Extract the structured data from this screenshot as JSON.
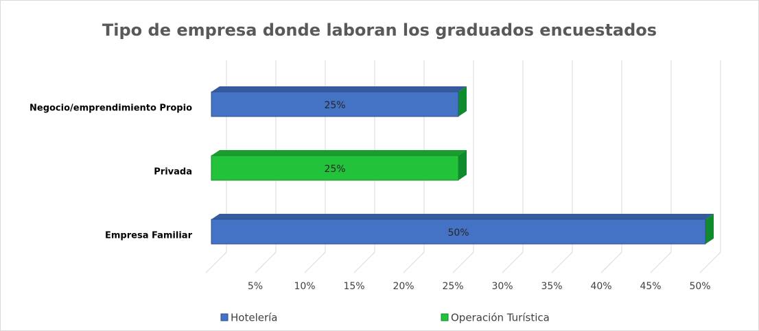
{
  "chart_data": {
    "type": "bar3d",
    "orientation": "horizontal",
    "title": "Tipo de empresa donde laboran los graduados encuestados",
    "categories": [
      "Negocio/emprendimiento Propio",
      "Privada",
      "Empresa Familiar"
    ],
    "series": [
      {
        "name": "Hotelería",
        "color": "#4472c4",
        "values": [
          25,
          null,
          50
        ],
        "value_labels": [
          "25%",
          null,
          "50%"
        ]
      },
      {
        "name": "Operación Turística",
        "color": "#22c33a",
        "values": [
          null,
          25,
          null
        ],
        "value_labels": [
          null,
          "25%",
          null
        ]
      }
    ],
    "xlim": [
      0,
      50
    ],
    "xticks": [
      {
        "value": 5,
        "label": "5%"
      },
      {
        "value": 10,
        "label": "10%"
      },
      {
        "value": 15,
        "label": "15%"
      },
      {
        "value": 20,
        "label": "20%"
      },
      {
        "value": 25,
        "label": "25%"
      },
      {
        "value": 30,
        "label": "30%"
      },
      {
        "value": 35,
        "label": "35%"
      },
      {
        "value": 40,
        "label": "40%"
      },
      {
        "value": 45,
        "label": "45%"
      },
      {
        "value": 50,
        "label": "50%"
      }
    ],
    "grid": true,
    "legend": "bottom"
  }
}
